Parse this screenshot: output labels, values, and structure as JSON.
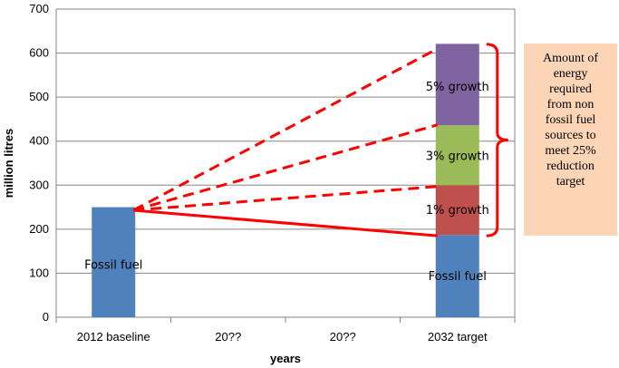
{
  "chart_data": {
    "type": "bar",
    "stacked": true,
    "categories": [
      "2012 baseline",
      "20??",
      "20??",
      "2032 target"
    ],
    "xlabel": "years",
    "ylabel": "million litres",
    "ylim": [
      0,
      700
    ],
    "yticks": [
      0,
      100,
      200,
      300,
      400,
      500,
      600,
      700
    ],
    "grid": true,
    "series": [
      {
        "name": "Fossil fuel",
        "color": "#4f81bd",
        "values": [
          250,
          0,
          0,
          187
        ]
      },
      {
        "name": "1% growth",
        "color": "#c0504d",
        "values": [
          0,
          0,
          0,
          113
        ]
      },
      {
        "name": "3% growth",
        "color": "#9bbb59",
        "values": [
          0,
          0,
          0,
          136
        ]
      },
      {
        "name": "5% growth",
        "color": "#8064a2",
        "values": [
          0,
          0,
          0,
          185
        ]
      }
    ],
    "bar_labels": [
      {
        "category": 0,
        "text": "Fossil fuel",
        "y": 120
      },
      {
        "category": 3,
        "text": "Fossil fuel",
        "y": 95
      },
      {
        "category": 3,
        "text": "1% growth",
        "y": 245
      },
      {
        "category": 3,
        "text": "3%  growth",
        "y": 368
      },
      {
        "category": 3,
        "text": "5% growth",
        "y": 525
      }
    ],
    "projection_lines": {
      "color": "#ff0000",
      "from": {
        "category": 0,
        "y": 243
      },
      "to": [
        {
          "category": 3,
          "y": 185,
          "style": "solid"
        },
        {
          "category": 3,
          "y": 297,
          "style": "dashed"
        },
        {
          "category": 3,
          "y": 437,
          "style": "dashed"
        },
        {
          "category": 3,
          "y": 610,
          "style": "dashed"
        }
      ]
    },
    "brace": {
      "from": 185,
      "to": 620,
      "color": "#ff0000"
    },
    "annotation": {
      "lines": [
        "Amount of",
        "energy",
        "required",
        "from non",
        "fossil fuel",
        "sources to",
        "meet 25%",
        "reduction",
        "target"
      ],
      "background": "#fbd5b5"
    }
  }
}
